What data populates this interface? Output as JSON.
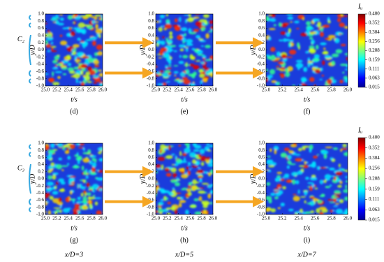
{
  "chart_data": {
    "type": "heatmap",
    "xlabel": "t/s",
    "ylabel": "y/D",
    "xlim": [
      25,
      26
    ],
    "xticks": [
      {
        "value": 25,
        "label": "25.0"
      },
      25.2,
      25.4,
      25.6,
      25.8,
      {
        "value": 26,
        "label": "26.0"
      }
    ],
    "ylim": [
      -1,
      1
    ],
    "yticks": [
      {
        "value": -1,
        "label": "-1.0"
      },
      -0.8,
      -0.6,
      -0.4,
      -0.2,
      {
        "value": 0,
        "label": "0.0"
      },
      0.2,
      0.4,
      0.6,
      0.8,
      {
        "value": 1,
        "label": "1.0"
      }
    ],
    "colorbar": {
      "label": "Iᵤ",
      "lim": [
        0.015,
        0.4
      ],
      "ticks": [
        {
          "value": 0.4,
          "label": "0.400"
        },
        0.352,
        0.304,
        0.256,
        0.208,
        0.159,
        0.111,
        0.063,
        0.015
      ]
    },
    "rows": [
      {
        "label": "C₂"
      },
      {
        "label": "C₃"
      }
    ],
    "columns": [
      {
        "label": "x/D=3"
      },
      {
        "label": "x/D=5"
      },
      {
        "label": "x/D=7"
      }
    ],
    "panels": [
      {
        "caption": "(d)"
      },
      {
        "caption": "(e)"
      },
      {
        "caption": "(f)"
      },
      {
        "caption": "(g)"
      },
      {
        "caption": "(h)"
      },
      {
        "caption": "(i)"
      }
    ]
  }
}
